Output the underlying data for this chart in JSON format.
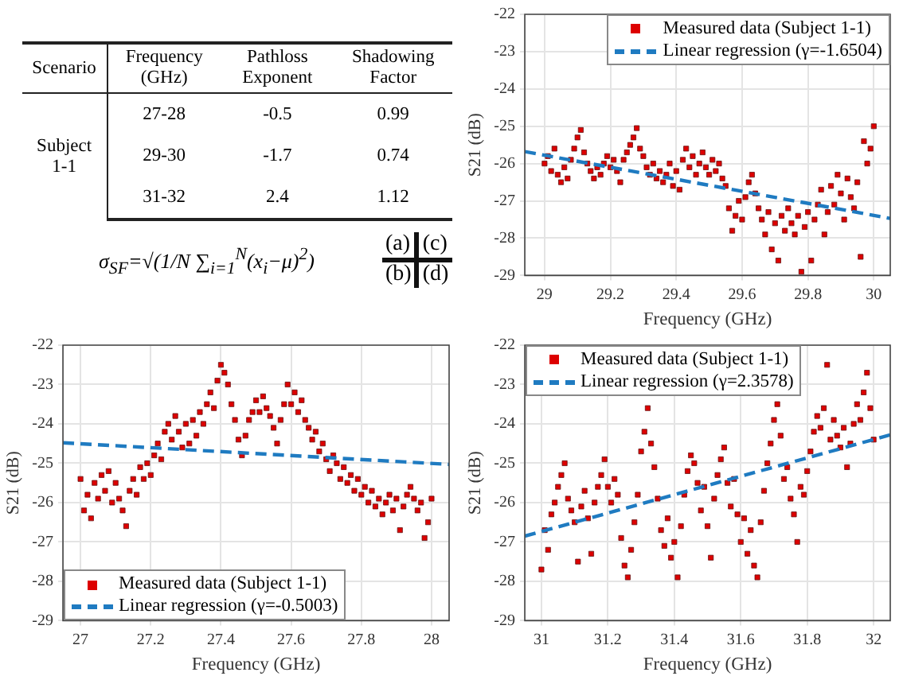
{
  "chart_data": [
    {
      "type": "other",
      "annotations": [
        "Scenario",
        "Frequency (GHz)",
        "Pathloss Exponent",
        "Shadowing Factor",
        "Subject 1-1",
        "27-28",
        "-0.5",
        "0.99",
        "29-30",
        "-1.7",
        "0.74",
        "31-32",
        "2.4",
        "1.12",
        "σ$_{SF}$=√(1/N ∑$_{i=1}$$^{N}$(x$_{i}$−μ)$^{2}$)",
        "(a)",
        "(c)",
        "(b)",
        "(d)"
      ]
    },
    {
      "type": "scatter",
      "xlabel": "Frequency (GHz)",
      "ylabel": "S21 (dB)",
      "xlim": [
        28.94,
        30.05
      ],
      "xticks": [
        29,
        29.2,
        29.4,
        29.6,
        29.8,
        30
      ],
      "ylim": [
        -29,
        -22
      ],
      "yticks": [
        -29,
        -28,
        -27,
        -26,
        -25,
        -24,
        -23,
        -22
      ],
      "grid": true,
      "legend": "top right",
      "marker": "square",
      "series": [
        {
          "name": "Measured data (Subject 1-1)",
          "color": "#dd0000",
          "x": [
            29.0,
            29.01,
            29.02,
            29.03,
            29.04,
            29.05,
            29.06,
            29.07,
            29.08,
            29.09,
            29.1,
            29.11,
            29.12,
            29.13,
            29.14,
            29.15,
            29.16,
            29.17,
            29.18,
            29.19,
            29.2,
            29.21,
            29.22,
            29.23,
            29.24,
            29.25,
            29.26,
            29.27,
            29.28,
            29.29,
            29.3,
            29.31,
            29.32,
            29.33,
            29.34,
            29.35,
            29.36,
            29.37,
            29.38,
            29.39,
            29.4,
            29.41,
            29.42,
            29.43,
            29.44,
            29.45,
            29.46,
            29.47,
            29.48,
            29.49,
            29.5,
            29.51,
            29.52,
            29.53,
            29.54,
            29.55,
            29.56,
            29.57,
            29.58,
            29.59,
            29.6,
            29.61,
            29.62,
            29.63,
            29.64,
            29.65,
            29.66,
            29.67,
            29.68,
            29.69,
            29.7,
            29.71,
            29.72,
            29.73,
            29.74,
            29.75,
            29.76,
            29.77,
            29.78,
            29.79,
            29.8,
            29.81,
            29.82,
            29.83,
            29.84,
            29.85,
            29.86,
            29.87,
            29.88,
            29.89,
            29.9,
            29.91,
            29.92,
            29.93,
            29.94,
            29.95,
            29.96,
            29.97,
            29.98,
            29.99,
            30.0
          ],
          "values": [
            -26.0,
            -25.8,
            -26.2,
            -25.6,
            -26.3,
            -26.5,
            -26.1,
            -26.4,
            -25.9,
            -25.6,
            -25.3,
            -25.1,
            -25.7,
            -26.0,
            -26.2,
            -26.4,
            -26.1,
            -26.3,
            -26.0,
            -25.8,
            -26.1,
            -25.9,
            -26.2,
            -26.5,
            -25.9,
            -25.7,
            -25.5,
            -25.3,
            -25.05,
            -25.6,
            -25.8,
            -26.1,
            -26.3,
            -26.0,
            -26.4,
            -26.2,
            -26.5,
            -26.3,
            -26.0,
            -26.6,
            -26.2,
            -26.7,
            -25.9,
            -25.6,
            -26.1,
            -25.8,
            -26.3,
            -26.0,
            -25.7,
            -26.1,
            -26.3,
            -25.9,
            -26.2,
            -26.0,
            -26.4,
            -26.6,
            -27.2,
            -27.8,
            -27.4,
            -27.0,
            -27.5,
            -26.9,
            -26.5,
            -26.3,
            -26.8,
            -27.2,
            -27.5,
            -27.9,
            -27.3,
            -28.3,
            -27.6,
            -28.6,
            -27.4,
            -27.8,
            -27.2,
            -27.6,
            -27.9,
            -27.4,
            -28.9,
            -27.7,
            -27.3,
            -28.6,
            -27.5,
            -27.1,
            -26.7,
            -27.9,
            -27.3,
            -26.6,
            -27.1,
            -26.3,
            -26.8,
            -27.5,
            -26.4,
            -26.9,
            -27.2,
            -26.5,
            -28.5,
            -25.4,
            -26.0,
            -25.6,
            -25.0
          ]
        },
        {
          "name": "Linear regression (γ=-1.6504)",
          "type": "line",
          "color": "#1f7bc1",
          "line_style": "dashed",
          "marker": "none",
          "x": [
            28.94,
            30.05
          ],
          "values": [
            -25.68,
            -27.47
          ]
        }
      ]
    },
    {
      "type": "scatter",
      "xlabel": "Frequency (GHz)",
      "ylabel": "S21 (dB)",
      "xlim": [
        26.95,
        28.05
      ],
      "xticks": [
        27,
        27.2,
        27.4,
        27.6,
        27.8,
        28
      ],
      "ylim": [
        -29,
        -22
      ],
      "yticks": [
        -29,
        -28,
        -27,
        -26,
        -25,
        -24,
        -23,
        -22
      ],
      "grid": true,
      "legend": "bottom left",
      "marker": "square",
      "series": [
        {
          "name": "Measured data (Subject 1-1)",
          "color": "#dd0000",
          "x": [
            27.0,
            27.01,
            27.02,
            27.03,
            27.04,
            27.05,
            27.06,
            27.07,
            27.08,
            27.09,
            27.1,
            27.11,
            27.12,
            27.13,
            27.14,
            27.15,
            27.16,
            27.17,
            27.18,
            27.19,
            27.2,
            27.21,
            27.22,
            27.23,
            27.24,
            27.25,
            27.26,
            27.27,
            27.28,
            27.29,
            27.3,
            27.31,
            27.32,
            27.33,
            27.34,
            27.35,
            27.36,
            27.37,
            27.38,
            27.39,
            27.4,
            27.41,
            27.42,
            27.43,
            27.44,
            27.45,
            27.46,
            27.47,
            27.48,
            27.49,
            27.5,
            27.51,
            27.52,
            27.53,
            27.54,
            27.55,
            27.56,
            27.57,
            27.58,
            27.59,
            27.6,
            27.61,
            27.62,
            27.63,
            27.64,
            27.65,
            27.66,
            27.67,
            27.68,
            27.69,
            27.7,
            27.71,
            27.72,
            27.73,
            27.74,
            27.75,
            27.76,
            27.77,
            27.78,
            27.79,
            27.8,
            27.81,
            27.82,
            27.83,
            27.84,
            27.85,
            27.86,
            27.87,
            27.88,
            27.89,
            27.9,
            27.91,
            27.92,
            27.93,
            27.94,
            27.95,
            27.96,
            27.97,
            27.98,
            27.99,
            28.0
          ],
          "values": [
            -25.4,
            -26.2,
            -25.8,
            -26.4,
            -25.5,
            -25.9,
            -25.3,
            -25.7,
            -25.2,
            -26.0,
            -25.5,
            -25.9,
            -26.2,
            -26.6,
            -25.7,
            -25.4,
            -25.8,
            -25.1,
            -25.4,
            -25.0,
            -25.3,
            -24.8,
            -24.5,
            -24.9,
            -24.2,
            -24.0,
            -24.4,
            -23.8,
            -24.2,
            -24.6,
            -24.0,
            -24.5,
            -23.9,
            -24.3,
            -23.7,
            -24.0,
            -23.5,
            -23.2,
            -23.6,
            -22.9,
            -22.5,
            -22.7,
            -23.0,
            -23.5,
            -23.9,
            -24.4,
            -24.8,
            -24.3,
            -23.9,
            -23.7,
            -23.4,
            -23.7,
            -23.3,
            -23.6,
            -23.8,
            -24.1,
            -24.5,
            -23.9,
            -23.5,
            -23.0,
            -23.5,
            -23.2,
            -23.7,
            -23.4,
            -23.9,
            -24.1,
            -24.4,
            -24.2,
            -24.7,
            -24.5,
            -24.9,
            -25.2,
            -24.8,
            -25.0,
            -25.4,
            -25.1,
            -25.5,
            -25.3,
            -25.7,
            -25.4,
            -25.8,
            -25.6,
            -26.0,
            -25.7,
            -26.1,
            -25.9,
            -26.3,
            -26.0,
            -25.8,
            -26.2,
            -25.9,
            -26.7,
            -26.1,
            -25.8,
            -25.6,
            -25.9,
            -26.2,
            -26.0,
            -26.9,
            -26.5,
            -25.9
          ]
        },
        {
          "name": "Linear regression (γ=-0.5003)",
          "type": "line",
          "color": "#1f7bc1",
          "line_style": "dashed",
          "marker": "none",
          "x": [
            26.95,
            28.05
          ],
          "values": [
            -24.48,
            -25.03
          ]
        }
      ]
    },
    {
      "type": "scatter",
      "xlabel": "Frequency (GHz)",
      "ylabel": "S21 (dB)",
      "xlim": [
        30.95,
        32.05
      ],
      "xticks": [
        31,
        31.2,
        31.4,
        31.6,
        31.8,
        32
      ],
      "ylim": [
        -29,
        -22
      ],
      "yticks": [
        -29,
        -28,
        -27,
        -26,
        -25,
        -24,
        -23,
        -22
      ],
      "grid": true,
      "legend": "top left",
      "marker": "square",
      "series": [
        {
          "name": "Measured data (Subject 1-1)",
          "color": "#dd0000",
          "x": [
            31.0,
            31.01,
            31.02,
            31.03,
            31.04,
            31.05,
            31.06,
            31.07,
            31.08,
            31.09,
            31.1,
            31.11,
            31.12,
            31.13,
            31.14,
            31.15,
            31.16,
            31.17,
            31.18,
            31.19,
            31.2,
            31.21,
            31.22,
            31.23,
            31.24,
            31.25,
            31.26,
            31.27,
            31.28,
            31.29,
            31.3,
            31.31,
            31.32,
            31.33,
            31.34,
            31.35,
            31.36,
            31.37,
            31.38,
            31.39,
            31.4,
            31.41,
            31.42,
            31.43,
            31.44,
            31.45,
            31.46,
            31.47,
            31.48,
            31.49,
            31.5,
            31.51,
            31.52,
            31.53,
            31.54,
            31.55,
            31.56,
            31.57,
            31.58,
            31.59,
            31.6,
            31.61,
            31.62,
            31.63,
            31.64,
            31.65,
            31.66,
            31.67,
            31.68,
            31.69,
            31.7,
            31.71,
            31.72,
            31.73,
            31.74,
            31.75,
            31.76,
            31.77,
            31.78,
            31.79,
            31.8,
            31.81,
            31.82,
            31.83,
            31.84,
            31.85,
            31.86,
            31.87,
            31.88,
            31.89,
            31.9,
            31.91,
            31.92,
            31.93,
            31.94,
            31.95,
            31.96,
            31.97,
            31.98,
            31.99,
            32.0
          ],
          "values": [
            -27.7,
            -26.7,
            -27.2,
            -26.3,
            -26.0,
            -25.6,
            -25.3,
            -25.0,
            -25.9,
            -26.2,
            -26.5,
            -27.5,
            -26.1,
            -25.7,
            -26.4,
            -27.3,
            -26.0,
            -25.6,
            -25.3,
            -24.9,
            -25.6,
            -26.0,
            -25.4,
            -25.8,
            -26.9,
            -27.6,
            -27.9,
            -27.2,
            -26.5,
            -25.8,
            -24.7,
            -24.2,
            -23.6,
            -24.5,
            -25.1,
            -25.9,
            -26.7,
            -27.1,
            -26.4,
            -27.4,
            -27.0,
            -27.9,
            -26.6,
            -25.8,
            -25.2,
            -24.8,
            -25.0,
            -25.5,
            -26.2,
            -25.6,
            -26.6,
            -27.4,
            -25.9,
            -25.3,
            -24.9,
            -24.6,
            -25.5,
            -26.1,
            -25.4,
            -26.3,
            -27.0,
            -26.4,
            -27.3,
            -26.7,
            -27.6,
            -27.9,
            -26.5,
            -25.7,
            -25.0,
            -24.5,
            -23.9,
            -23.5,
            -24.3,
            -25.4,
            -25.1,
            -25.9,
            -26.3,
            -27.0,
            -25.6,
            -25.8,
            -25.2,
            -24.7,
            -24.2,
            -23.8,
            -24.1,
            -23.6,
            -22.5,
            -24.4,
            -23.9,
            -24.3,
            -24.6,
            -24.1,
            -25.1,
            -24.5,
            -24.0,
            -23.5,
            -23.9,
            -23.2,
            -22.7,
            -23.6,
            -24.4
          ]
        },
        {
          "name": "Linear regression (γ=2.3578)",
          "type": "line",
          "color": "#1f7bc1",
          "line_style": "dashed",
          "marker": "none",
          "x": [
            30.95,
            32.05
          ],
          "values": [
            -26.85,
            -24.28
          ]
        }
      ]
    }
  ]
}
